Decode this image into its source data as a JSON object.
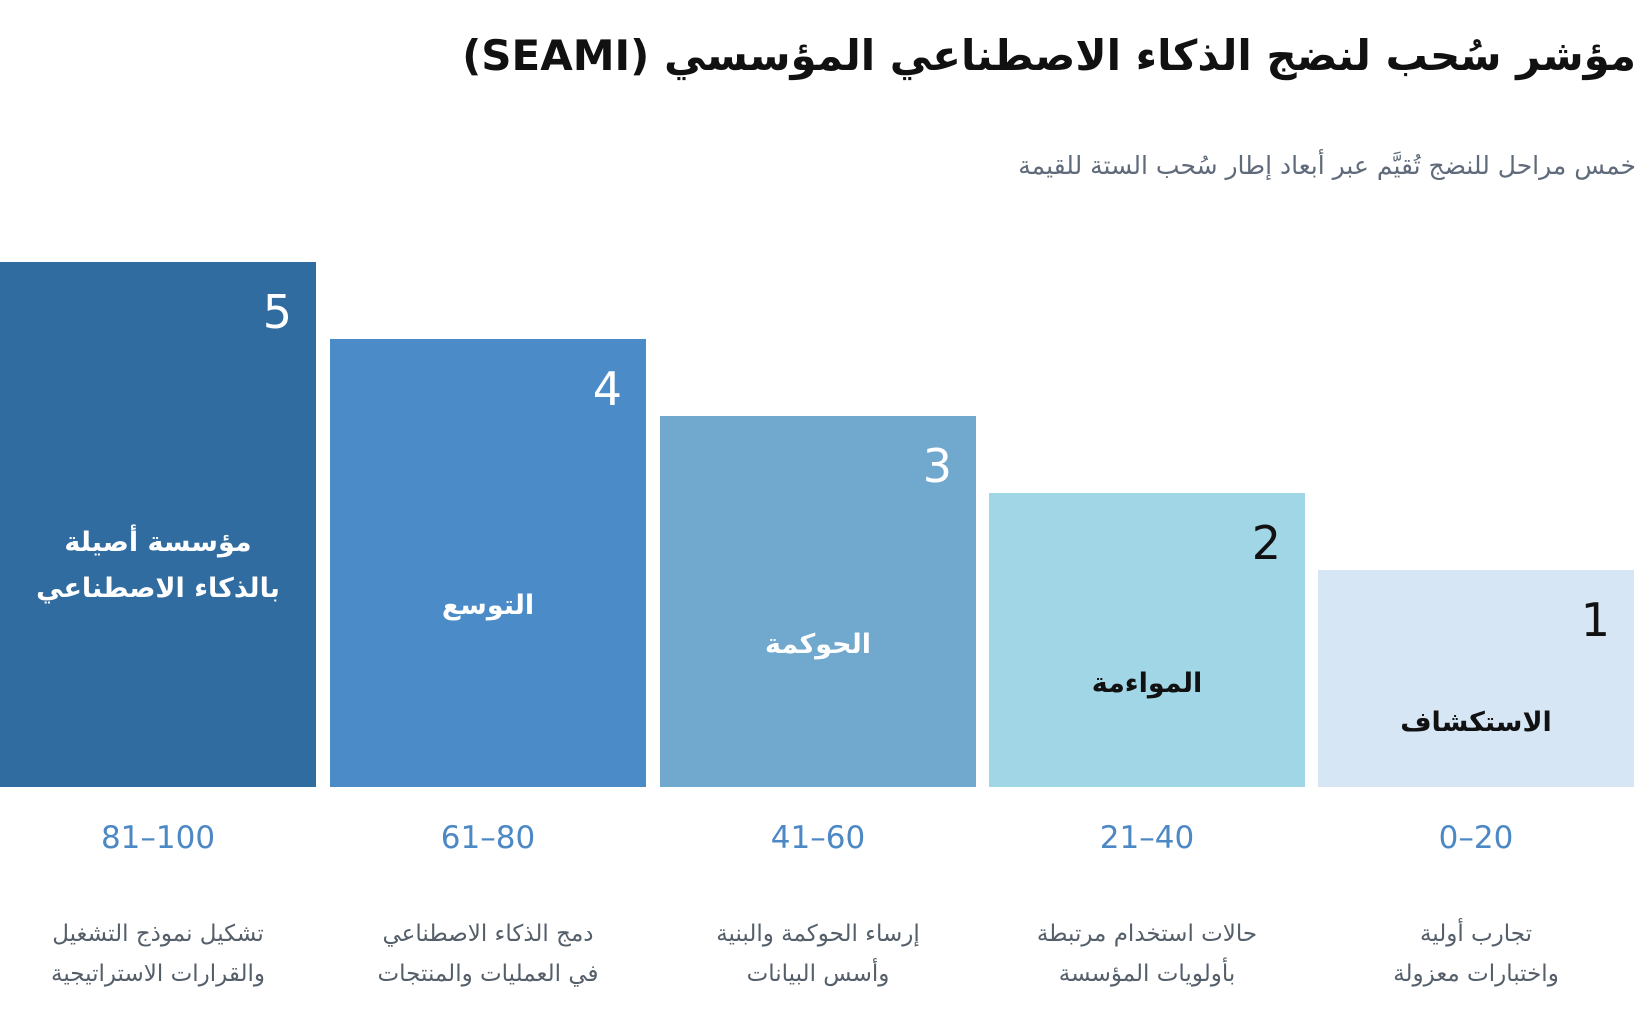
{
  "header": {
    "title": "مؤشر سُحب لنضج الذكاء الاصطناعي المؤسسي (SEAMI)",
    "subtitle": "خمس مراحل للنضج تُقيَّم عبر أبعاد إطار سُحب الستة للقيمة"
  },
  "stages": [
    {
      "number": "1",
      "name_lines": [
        "الاستكشاف"
      ],
      "range": "20–0",
      "description_lines": [
        "تجارب أولية",
        "واختبارات معزولة"
      ],
      "color": "#d6e6f4",
      "text_color": "#111111"
    },
    {
      "number": "2",
      "name_lines": [
        "المواءمة"
      ],
      "range": "40–21",
      "description_lines": [
        "حالات استخدام مرتبطة",
        "بأولويات المؤسسة"
      ],
      "color": "#a1d6e6",
      "text_color": "#111111"
    },
    {
      "number": "3",
      "name_lines": [
        "الحوكمة"
      ],
      "range": "60–41",
      "description_lines": [
        "إرساء الحوكمة والبنية",
        "وأسس البيانات"
      ],
      "color": "#71a8cd",
      "text_color": "#ffffff"
    },
    {
      "number": "4",
      "name_lines": [
        "التوسع"
      ],
      "range": "80–61",
      "description_lines": [
        "دمج الذكاء الاصطناعي",
        "في العمليات والمنتجات"
      ],
      "color": "#4b8cc8",
      "text_color": "#ffffff"
    },
    {
      "number": "5",
      "name_lines": [
        "مؤسسة أصيلة",
        "بالذكاء الاصطناعي"
      ],
      "range": "100–81",
      "description_lines": [
        "تشكيل نموذج التشغيل",
        "والقرارات الاستراتيجية"
      ],
      "color": "#316ca0",
      "text_color": "#ffffff"
    }
  ]
}
